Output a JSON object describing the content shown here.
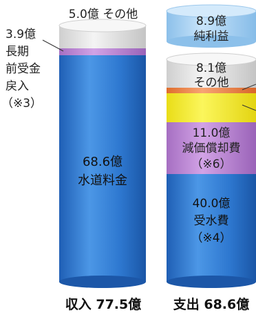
{
  "chart_data": [
    {
      "type": "bar",
      "stacked": true,
      "unit": "億",
      "total_label": "収入 77.5億",
      "total": 77.5,
      "segments": [
        {
          "name": "水道料金",
          "value": 68.6,
          "label_value": "68.6億",
          "label_name": "水道料金",
          "color": "#2f7ad2"
        },
        {
          "name": "長期前受金戻入",
          "value": 3.9,
          "label_value": "3.9億",
          "label_name": "長期前受金戻入",
          "label_lines": [
            "長期",
            "前受金",
            "戻入",
            "（※3）"
          ],
          "color": "#c08ad6"
        },
        {
          "name": "その他",
          "value": 5.0,
          "label": "5.0億 その他",
          "color": "#e8e8e8"
        }
      ]
    },
    {
      "type": "bar",
      "stacked": true,
      "unit": "億",
      "total_label": "支出 68.6億",
      "total": 68.6,
      "segments": [
        {
          "name": "受水費",
          "value": 40.0,
          "label_value": "40.0億",
          "label_name": "受水費",
          "label_note": "（※4）",
          "color": "#2f7ad2"
        },
        {
          "name": "減価償却費",
          "value": 11.0,
          "label_value": "11.0億",
          "label_name": "減価償却費",
          "label_note": "（※6）",
          "color": "#c08ad6"
        },
        {
          "name": "",
          "value": 7.5,
          "color": "#f5ee2f"
        },
        {
          "name": "",
          "value": 2.0,
          "color": "#ee8a4a"
        },
        {
          "name": "その他",
          "value": 8.1,
          "label_value": "8.1億",
          "label_name": "その他",
          "color": "#e8e8e8"
        }
      ],
      "extra": {
        "name": "純利益",
        "value": 8.9,
        "label_value": "8.9億",
        "label_name": "純利益",
        "color": "#a8d2f2"
      }
    }
  ]
}
